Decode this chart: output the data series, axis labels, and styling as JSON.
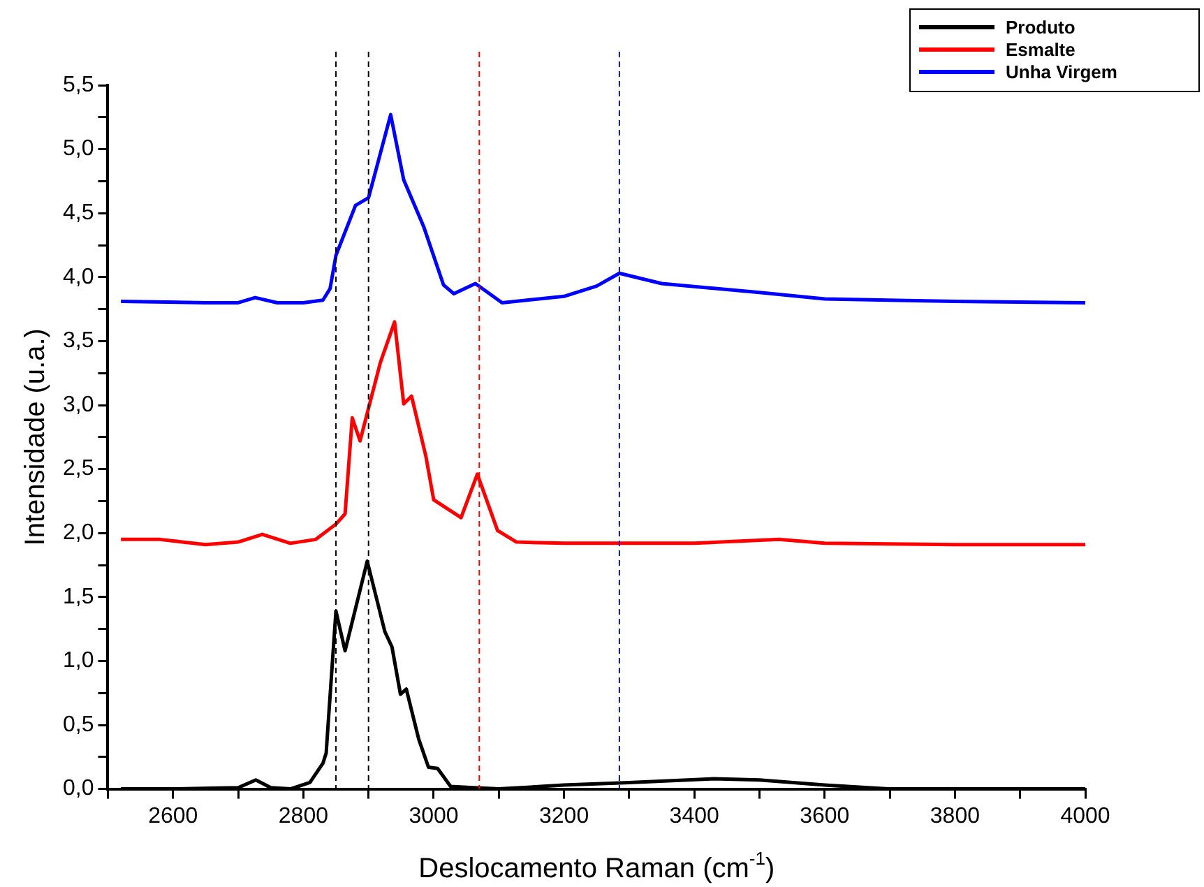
{
  "chart_data": {
    "type": "line",
    "xlabel": "Deslocamento Raman (cm$^{-1}$)",
    "ylabel": "Intensidade (u.a.)",
    "xlim": [
      2500,
      4000
    ],
    "xticks": [
      {
        "value": 2500,
        "label": null
      },
      2600,
      {
        "value": 2700,
        "label": null
      },
      2800,
      {
        "value": 2900,
        "label": null
      },
      3000,
      {
        "value": 3100,
        "label": null
      },
      3200,
      {
        "value": 3300,
        "label": null
      },
      3400,
      {
        "value": 3500,
        "label": null
      },
      3600,
      {
        "value": 3700,
        "label": null
      },
      3800,
      {
        "value": 3900,
        "label": null
      },
      4000
    ],
    "ylim": [
      0,
      5.5
    ],
    "yticks": [
      {
        "value": 0,
        "label": "0,0"
      },
      {
        "value": 0.25,
        "label": null
      },
      {
        "value": 0.5,
        "label": "0,5"
      },
      {
        "value": 0.75,
        "label": null
      },
      {
        "value": 1,
        "label": "1,0"
      },
      {
        "value": 1.25,
        "label": null
      },
      {
        "value": 1.5,
        "label": "1,5"
      },
      {
        "value": 1.75,
        "label": null
      },
      {
        "value": 2,
        "label": "2,0"
      },
      {
        "value": 2.25,
        "label": null
      },
      {
        "value": 2.5,
        "label": "2,5"
      },
      {
        "value": 2.75,
        "label": null
      },
      {
        "value": 3,
        "label": "3,0"
      },
      {
        "value": 3.25,
        "label": null
      },
      {
        "value": 3.5,
        "label": "3,5"
      },
      {
        "value": 3.75,
        "label": null
      },
      {
        "value": 4,
        "label": "4,0"
      },
      {
        "value": 4.25,
        "label": null
      },
      {
        "value": 4.5,
        "label": "4,5"
      },
      {
        "value": 4.75,
        "label": null
      },
      {
        "value": 5,
        "label": "5,0"
      },
      {
        "value": 5.25,
        "label": null
      },
      {
        "value": 5.5,
        "label": "5,5"
      }
    ],
    "grid": false,
    "legend": "top right",
    "marker": "none",
    "line_style": "solid",
    "series": [
      {
        "name": "Produto",
        "color": "#000000",
        "x": [
          2520,
          2600,
          2700,
          2727,
          2750,
          2780,
          2810,
          2830,
          2835,
          2839,
          2850,
          2864,
          2898,
          2925,
          2936,
          2949,
          2958,
          2977,
          2992,
          3006,
          3026,
          3060,
          3100,
          3200,
          3300,
          3430,
          3500,
          3600,
          3700,
          3800,
          4000
        ],
        "values": [
          0,
          0,
          0.01,
          0.07,
          0.01,
          0,
          0.05,
          0.2,
          0.28,
          0.58,
          1.39,
          1.08,
          1.78,
          1.23,
          1.11,
          0.74,
          0.78,
          0.39,
          0.17,
          0.16,
          0.02,
          0.01,
          0,
          0.03,
          0.05,
          0.08,
          0.07,
          0.03,
          0,
          0,
          0
        ]
      },
      {
        "name": "Esmalte",
        "color": "#ff0000",
        "x": [
          2520,
          2580,
          2650,
          2700,
          2737,
          2780,
          2819,
          2850,
          2864,
          2875,
          2887,
          2918,
          2940,
          2954,
          2966,
          2988,
          3000,
          3042,
          3067,
          3098,
          3127,
          3200,
          3400,
          3530,
          3600,
          3800,
          4000
        ],
        "values": [
          1.95,
          1.95,
          1.91,
          1.93,
          1.99,
          1.92,
          1.95,
          2.07,
          2.15,
          2.9,
          2.72,
          3.33,
          3.65,
          3.01,
          3.07,
          2.6,
          2.26,
          2.12,
          2.46,
          2.02,
          1.93,
          1.92,
          1.92,
          1.95,
          1.92,
          1.91,
          1.91
        ]
      },
      {
        "name": "Unha Virgem",
        "color": "#0000ff",
        "x": [
          2520,
          2650,
          2700,
          2726,
          2760,
          2800,
          2830,
          2841,
          2850,
          2880,
          2900,
          2934,
          2954,
          2985,
          3015,
          3031,
          3064,
          3105,
          3200,
          3250,
          3285,
          3350,
          3500,
          3600,
          3800,
          4000
        ],
        "values": [
          3.81,
          3.8,
          3.8,
          3.84,
          3.8,
          3.8,
          3.82,
          3.91,
          4.17,
          4.56,
          4.62,
          5.27,
          4.76,
          4.39,
          3.94,
          3.87,
          3.95,
          3.8,
          3.85,
          3.93,
          4.03,
          3.95,
          3.88,
          3.83,
          3.81,
          3.8
        ]
      }
    ],
    "ref_lines": [
      {
        "axis": "x",
        "value": 2850,
        "color": "#000000",
        "line_style": "dashed"
      },
      {
        "axis": "x",
        "value": 2900,
        "color": "#000000",
        "line_style": "dashed"
      },
      {
        "axis": "x",
        "value": 3070,
        "color": "#ff0000",
        "line_style": "dashed"
      },
      {
        "axis": "x",
        "value": 3285,
        "color": "#0000ff",
        "line_style": "dashed"
      }
    ]
  }
}
